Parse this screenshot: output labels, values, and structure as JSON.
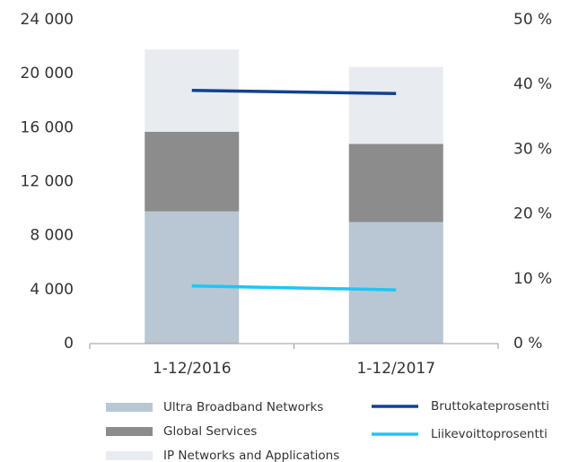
{
  "chart_data": {
    "type": "bar",
    "categories": [
      "1-12/2016",
      "1-12/2017"
    ],
    "series": [
      {
        "name": "Ultra Broadband Networks",
        "type": "bar",
        "color": "#b8c7d3",
        "values": [
          9800,
          9000
        ]
      },
      {
        "name": "Global Services",
        "type": "bar",
        "color": "#8c8c8c",
        "values": [
          5900,
          5800
        ]
      },
      {
        "name": "IP Networks and Applications",
        "type": "bar",
        "color": "#e8ecf0",
        "values": [
          6100,
          5700
        ]
      },
      {
        "name": "Bruttokateprosentti",
        "type": "line",
        "axis": "y2",
        "color": "#124191",
        "values": [
          39.1,
          38.6
        ]
      },
      {
        "name": "Liikevoittoprosentti",
        "type": "line",
        "axis": "y2",
        "color": "#1ec6f5",
        "values": [
          8.9,
          8.3
        ]
      }
    ],
    "ylim": [
      0,
      24000
    ],
    "yticks": [
      0,
      {
        "value": 4000,
        "label": "4 000"
      },
      {
        "value": 8000,
        "label": "8 000"
      },
      {
        "value": 12000,
        "label": "12 000"
      },
      {
        "value": 16000,
        "label": "16 000"
      },
      {
        "value": 20000,
        "label": "20 000"
      },
      {
        "value": 24000,
        "label": "24 000"
      }
    ],
    "y2lim": [
      0,
      50
    ],
    "y2ticks": [
      {
        "value": 0,
        "label": "0 %"
      },
      {
        "value": 10,
        "label": "10 %"
      },
      {
        "value": 20,
        "label": "20 %"
      },
      {
        "value": 30,
        "label": "30 %"
      },
      {
        "value": 40,
        "label": "40 %"
      },
      {
        "value": 50,
        "label": "50 %"
      }
    ],
    "grid": false
  }
}
